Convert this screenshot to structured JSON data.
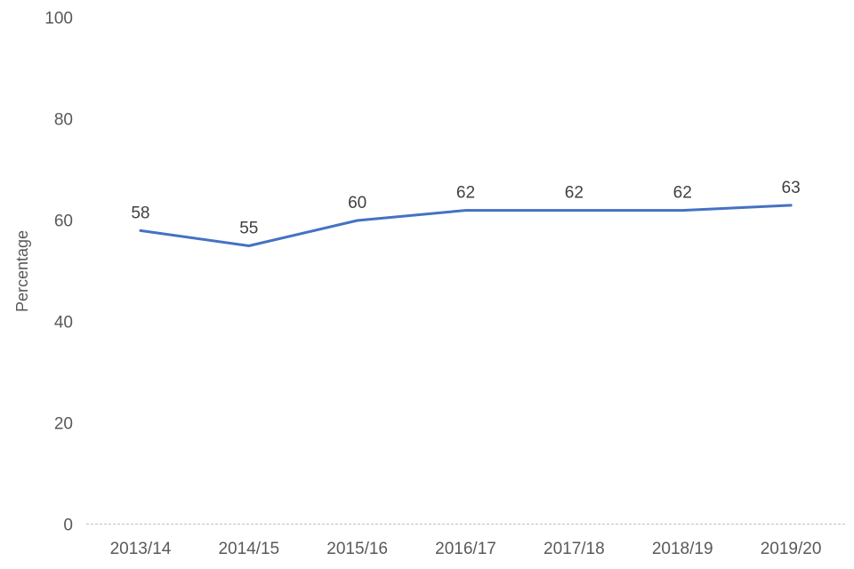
{
  "chart_data": {
    "type": "line",
    "title": "",
    "xlabel": "",
    "ylabel": "Percentage",
    "categories": [
      "2013/14",
      "2014/15",
      "2015/16",
      "2016/17",
      "2017/18",
      "2018/19",
      "2019/20"
    ],
    "series": [
      {
        "name": "Percentage",
        "values": [
          58,
          55,
          60,
          62,
          62,
          62,
          63
        ]
      }
    ],
    "data_labels": [
      "58",
      "55",
      "60",
      "62",
      "62",
      "62",
      "63"
    ],
    "ylim": [
      0,
      100
    ],
    "yticks": [
      0,
      20,
      40,
      60,
      80,
      100
    ],
    "ytick_labels": [
      "0",
      "20",
      "40",
      "60",
      "80",
      "100"
    ],
    "grid": false,
    "legend": false,
    "colors": {
      "line": "#4472C4",
      "axis_line": "#C9C9C9",
      "tick_text": "#595959",
      "data_label_text": "#404040",
      "background": "#ffffff"
    }
  }
}
